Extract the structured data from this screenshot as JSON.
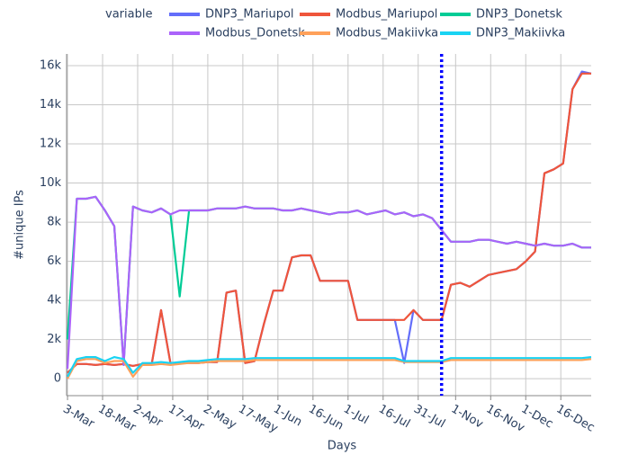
{
  "chart_data": {
    "type": "line",
    "legend_title": "variable",
    "x_label": "Days",
    "y_label": "#unique IPs",
    "x": [
      0,
      4,
      8,
      12,
      16,
      20,
      24,
      28,
      32,
      36,
      40,
      44,
      48,
      52,
      56,
      60,
      64,
      68,
      72,
      76,
      80,
      84,
      88,
      92,
      96,
      100,
      104,
      108,
      112,
      116,
      120,
      124,
      128,
      132,
      136,
      140,
      144,
      148,
      152,
      156,
      160,
      164,
      168,
      172,
      176,
      180,
      184,
      188,
      192,
      196,
      200,
      204,
      208,
      212,
      216,
      220,
      224
    ],
    "xlim": [
      -0.4,
      224
    ],
    "xticks": [
      {
        "value": 0,
        "label": "3-Mar"
      },
      {
        "value": 15,
        "label": "18-Mar"
      },
      {
        "value": 30,
        "label": "2-Apr"
      },
      {
        "value": 45,
        "label": "17-Apr"
      },
      {
        "value": 60,
        "label": "2-May"
      },
      {
        "value": 75,
        "label": "17-May"
      },
      {
        "value": 90,
        "label": "1-Jun"
      },
      {
        "value": 105,
        "label": "16-Jun"
      },
      {
        "value": 120,
        "label": "1-Jul"
      },
      {
        "value": 135,
        "label": "16-Jul"
      },
      {
        "value": 150,
        "label": "31-Jul"
      },
      {
        "value": 166,
        "label": "1-Nov"
      },
      {
        "value": 181,
        "label": "16-Nov"
      },
      {
        "value": 196,
        "label": "1-Dec"
      },
      {
        "value": 211,
        "label": "16-Dec"
      }
    ],
    "ylim": [
      -870,
      16600
    ],
    "yticks": [
      0,
      {
        "value": 2000,
        "label": "2k"
      },
      {
        "value": 4000,
        "label": "4k"
      },
      {
        "value": 6000,
        "label": "6k"
      },
      {
        "value": 8000,
        "label": "8k"
      },
      {
        "value": 10000,
        "label": "10k"
      },
      {
        "value": 12000,
        "label": "12k"
      },
      {
        "value": 14000,
        "label": "14k"
      },
      {
        "value": 16000,
        "label": "16k"
      }
    ],
    "grid": true,
    "vline": {
      "x": 160,
      "color": "#0000ff"
    },
    "series": [
      {
        "name": "DNP3_Mariupol",
        "color": "#636efa",
        "values": [
          300,
          750,
          750,
          700,
          750,
          700,
          750,
          650,
          750,
          750,
          3500,
          800,
          800,
          800,
          800,
          850,
          850,
          4400,
          4500,
          800,
          900,
          2800,
          4500,
          4500,
          6200,
          6300,
          6300,
          5000,
          5000,
          5000,
          5000,
          3000,
          3000,
          3000,
          3000,
          3000,
          800,
          3500,
          3000,
          3000,
          3000,
          4800,
          4900,
          4700,
          5000,
          5300,
          5400,
          5500,
          5600,
          6000,
          6500,
          10500,
          10700,
          11000,
          14800,
          15700,
          15600
        ]
      },
      {
        "name": "Modbus_Mariupol",
        "color": "#ef553b",
        "values": [
          300,
          750,
          750,
          700,
          750,
          700,
          750,
          650,
          750,
          750,
          3500,
          800,
          800,
          800,
          800,
          850,
          850,
          4400,
          4500,
          800,
          900,
          2800,
          4500,
          4500,
          6200,
          6300,
          6300,
          5000,
          5000,
          5000,
          5000,
          3000,
          3000,
          3000,
          3000,
          3000,
          3000,
          3500,
          3000,
          3000,
          3000,
          4800,
          4900,
          4700,
          5000,
          5300,
          5400,
          5500,
          5600,
          6000,
          6500,
          10500,
          10700,
          11000,
          14800,
          15600,
          15600
        ]
      },
      {
        "name": "DNP3_Donetsk",
        "color": "#00cc96",
        "values": [
          2000,
          9200,
          9200,
          9300,
          8600,
          7800,
          700,
          8800,
          8600,
          8500,
          8700,
          8400,
          4200,
          8600,
          8600,
          8600,
          8700,
          8700,
          8700,
          8800,
          8700,
          8700,
          8700,
          8600,
          8600,
          8700,
          8600,
          8500,
          8400,
          8500,
          8500,
          8600,
          8400,
          8500,
          8600,
          8400,
          8500,
          8300,
          8400,
          8200,
          7600,
          7000,
          7000,
          7000,
          7100,
          7100,
          7000,
          6900,
          7000,
          6900,
          6800,
          6900,
          6800,
          6800,
          6900,
          6700,
          6700
        ]
      },
      {
        "name": "Modbus_Donetsk",
        "color": "#ab63fa",
        "values": [
          500,
          9200,
          9200,
          9300,
          8600,
          7800,
          700,
          8800,
          8600,
          8500,
          8700,
          8400,
          8600,
          8600,
          8600,
          8600,
          8700,
          8700,
          8700,
          8800,
          8700,
          8700,
          8700,
          8600,
          8600,
          8700,
          8600,
          8500,
          8400,
          8500,
          8500,
          8600,
          8400,
          8500,
          8600,
          8400,
          8500,
          8300,
          8400,
          8200,
          7600,
          7000,
          7000,
          7000,
          7100,
          7100,
          7000,
          6900,
          7000,
          6900,
          6800,
          6900,
          6800,
          6800,
          6900,
          6700,
          6700
        ]
      },
      {
        "name": "Modbus_Makiivka",
        "color": "#ffa15a",
        "values": [
          0,
          900,
          1000,
          1000,
          800,
          900,
          900,
          100,
          700,
          700,
          750,
          700,
          750,
          800,
          800,
          850,
          900,
          900,
          900,
          900,
          950,
          950,
          950,
          950,
          950,
          950,
          950,
          950,
          950,
          950,
          950,
          950,
          950,
          950,
          950,
          950,
          850,
          850,
          850,
          850,
          850,
          950,
          950,
          950,
          950,
          950,
          950,
          950,
          950,
          950,
          950,
          950,
          950,
          950,
          950,
          950,
          1000
        ]
      },
      {
        "name": "DNP3_Makiivka",
        "color": "#19d3f3",
        "values": [
          100,
          1000,
          1100,
          1100,
          900,
          1100,
          1000,
          300,
          800,
          800,
          850,
          800,
          850,
          900,
          900,
          950,
          1000,
          1000,
          1000,
          1000,
          1050,
          1050,
          1050,
          1050,
          1050,
          1050,
          1050,
          1050,
          1050,
          1050,
          1050,
          1050,
          1050,
          1050,
          1050,
          1050,
          900,
          900,
          900,
          900,
          900,
          1050,
          1050,
          1050,
          1050,
          1050,
          1050,
          1050,
          1050,
          1050,
          1050,
          1050,
          1050,
          1050,
          1050,
          1050,
          1100
        ]
      }
    ]
  }
}
